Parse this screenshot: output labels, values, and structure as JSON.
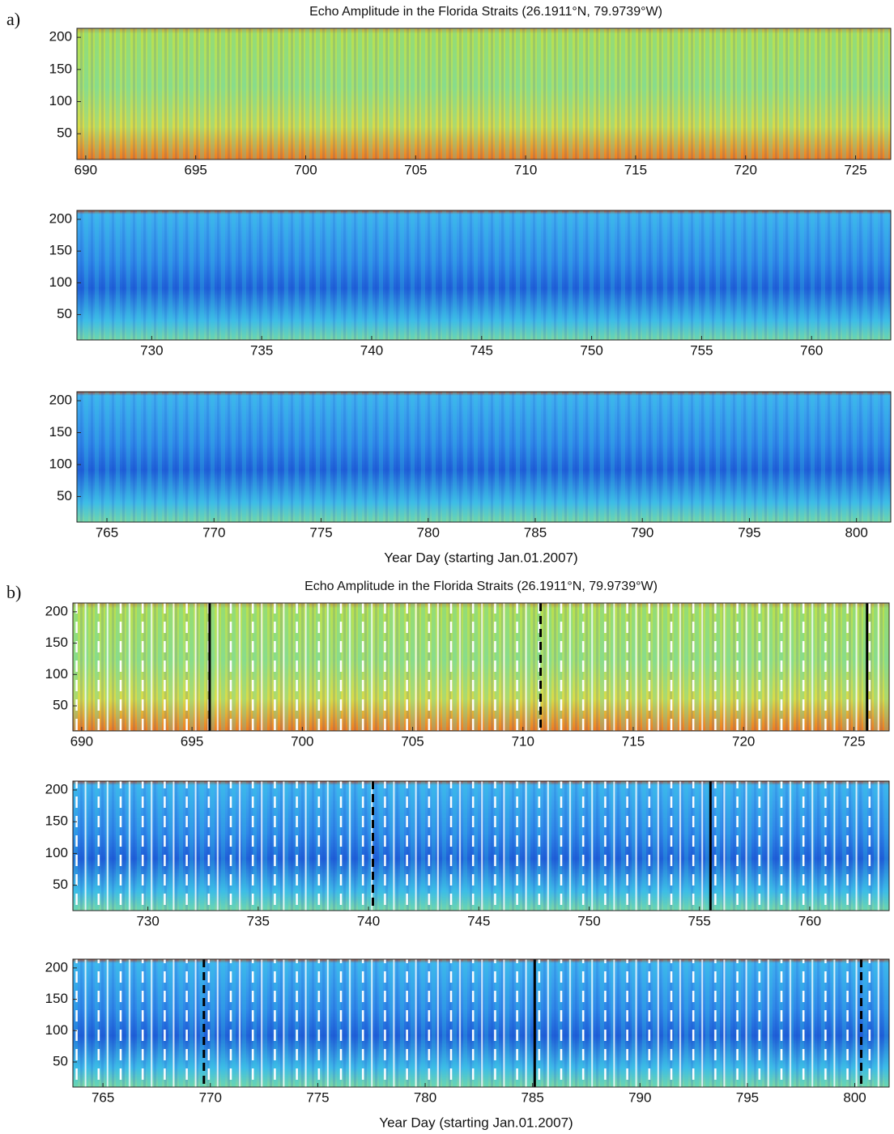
{
  "chart_data": [
    {
      "type": "heatmap",
      "panel_label": "a)",
      "title": "Echo Amplitude in the Florida Straits (26.1911°N, 79.9739°W)",
      "xlabel": "Year Day (starting Jan.01.2007)",
      "panels": [
        {
          "xlim": [
            689.6,
            726.6
          ],
          "xticks": [
            690,
            695,
            700,
            705,
            710,
            715,
            720,
            725
          ],
          "ylim": [
            10,
            214
          ],
          "yticks": [
            50,
            100,
            150,
            200
          ]
        },
        {
          "xlim": [
            726.6,
            763.6
          ],
          "xticks": [
            730,
            735,
            740,
            745,
            750,
            755,
            760
          ],
          "ylim": [
            10,
            214
          ],
          "yticks": [
            50,
            100,
            150,
            200
          ]
        },
        {
          "xlim": [
            763.6,
            801.6
          ],
          "xticks": [
            765,
            770,
            775,
            780,
            785,
            790,
            795,
            800
          ],
          "ylim": [
            10,
            214
          ],
          "yticks": [
            50,
            100,
            150,
            200
          ]
        }
      ]
    },
    {
      "type": "heatmap",
      "panel_label": "b)",
      "title": "Echo Amplitude in the Florida Straits (26.1911°N, 79.9739°W)",
      "xlabel": "Year Day (starting Jan.01.2007)",
      "panels": [
        {
          "xlim": [
            689.6,
            726.6
          ],
          "xticks": [
            690,
            695,
            700,
            705,
            710,
            715,
            720,
            725
          ],
          "ylim": [
            10,
            214
          ],
          "yticks": [
            50,
            100,
            150,
            200
          ],
          "events": [
            {
              "day": 695.8,
              "style": "solid"
            },
            {
              "day": 710.8,
              "style": "dashed"
            },
            {
              "day": 725.6,
              "style": "solid"
            }
          ]
        },
        {
          "xlim": [
            726.6,
            763.6
          ],
          "xticks": [
            730,
            735,
            740,
            745,
            750,
            755,
            760
          ],
          "ylim": [
            10,
            214
          ],
          "yticks": [
            50,
            100,
            150,
            200
          ],
          "events": [
            {
              "day": 740.2,
              "style": "dashed"
            },
            {
              "day": 755.5,
              "style": "solid"
            }
          ]
        },
        {
          "xlim": [
            763.6,
            801.6
          ],
          "xticks": [
            765,
            770,
            775,
            780,
            785,
            790,
            795,
            800
          ],
          "ylim": [
            10,
            214
          ],
          "yticks": [
            50,
            100,
            150,
            200
          ],
          "events": [
            {
              "day": 769.7,
              "style": "dashed"
            },
            {
              "day": 785.1,
              "style": "solid"
            },
            {
              "day": 800.3,
              "style": "dashed"
            }
          ]
        }
      ]
    }
  ]
}
